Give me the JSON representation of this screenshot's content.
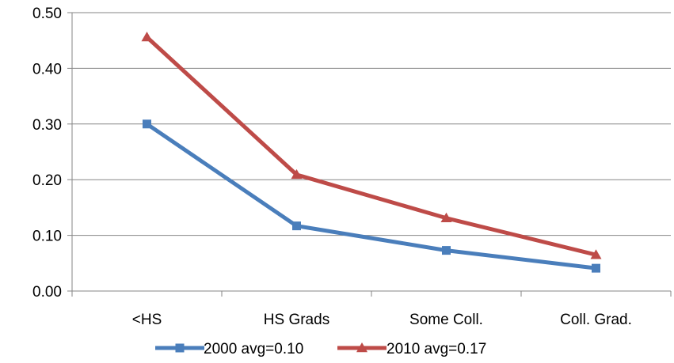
{
  "chart_data": {
    "type": "line",
    "title": "",
    "xlabel": "",
    "ylabel": "",
    "categories": [
      "<HS",
      "HS Grads",
      "Some Coll.",
      "Coll. Grad."
    ],
    "ylim": [
      0,
      0.5
    ],
    "yticks": [
      "0.00",
      "0.10",
      "0.20",
      "0.30",
      "0.40",
      "0.50"
    ],
    "grid": "horizontal",
    "legend_position": "bottom",
    "series": [
      {
        "name": "2000 avg=0.10",
        "values": [
          0.3,
          0.117,
          0.073,
          0.041
        ],
        "color": "#4a7ebb",
        "marker": "square"
      },
      {
        "name": "2010 avg=0.17",
        "values": [
          0.456,
          0.209,
          0.131,
          0.065
        ],
        "color": "#be4b48",
        "marker": "triangle"
      }
    ]
  }
}
